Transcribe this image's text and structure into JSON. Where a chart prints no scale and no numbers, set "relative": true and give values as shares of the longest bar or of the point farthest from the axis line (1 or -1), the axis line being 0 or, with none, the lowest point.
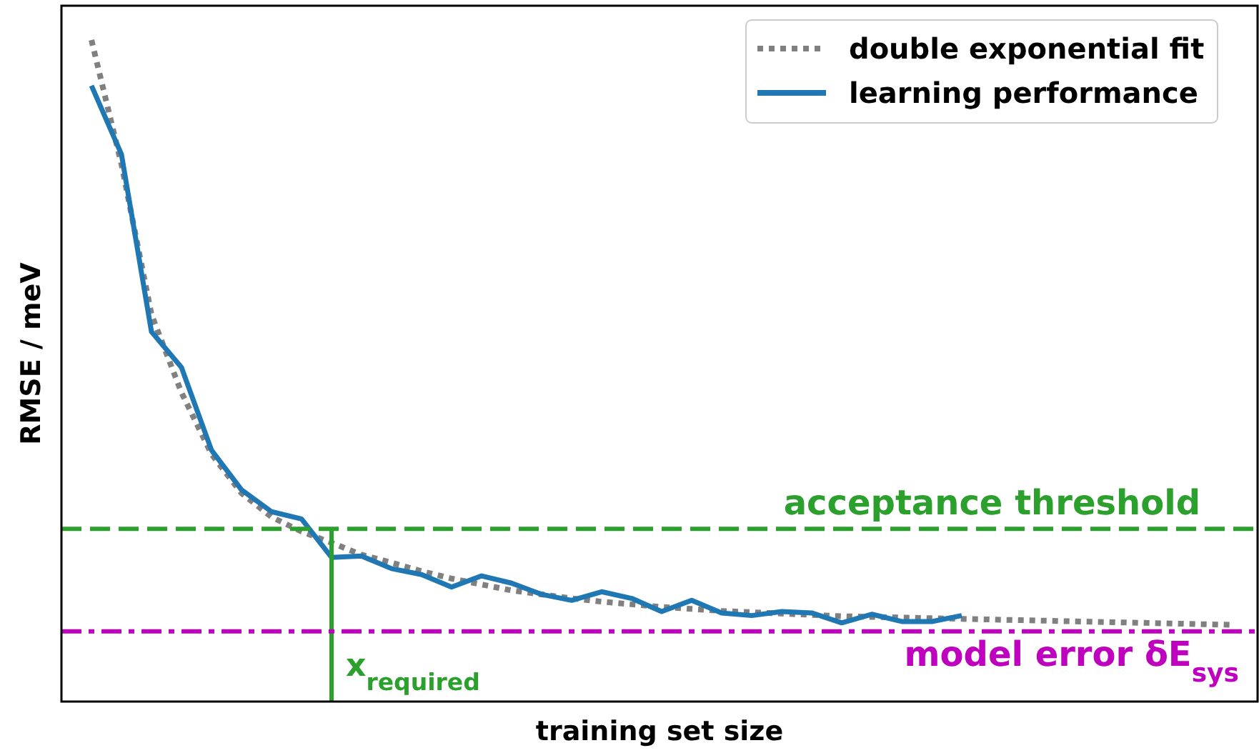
{
  "chart_data": {
    "type": "line",
    "relative": true,
    "xlabel": "training set size",
    "ylabel": "RMSE / meV",
    "categories": [
      null,
      null,
      null,
      null,
      null,
      null,
      null,
      null,
      null,
      null,
      null,
      null,
      null,
      null,
      null,
      null,
      null,
      null,
      null,
      null,
      null,
      null,
      null,
      null,
      null,
      null,
      null,
      null,
      null,
      null,
      null,
      null,
      null,
      null,
      null,
      null,
      null,
      null,
      null
    ],
    "series": [
      {
        "name": "double exponential fit",
        "color": "#808080",
        "line_style": "dotted",
        "values": [
          1.0,
          0.812,
          0.585,
          0.467,
          0.374,
          0.315,
          0.279,
          0.257,
          0.24,
          0.222,
          0.21,
          0.197,
          0.186,
          0.177,
          0.168,
          0.162,
          0.156,
          0.151,
          0.147,
          0.143,
          0.14,
          0.137,
          0.135,
          0.133,
          0.131,
          0.129,
          0.128,
          0.127,
          0.126,
          0.125,
          0.124,
          0.123,
          0.122,
          0.121,
          0.12,
          0.119,
          0.118,
          0.117,
          0.116
        ]
      },
      {
        "name": "learning performance",
        "color": "#1f77b4",
        "line_style": "solid",
        "values": [
          0.931,
          0.827,
          0.559,
          0.505,
          0.38,
          0.32,
          0.287,
          0.276,
          0.218,
          0.22,
          0.201,
          0.192,
          0.173,
          0.19,
          0.179,
          0.162,
          0.153,
          0.166,
          0.156,
          0.136,
          0.153,
          0.134,
          0.13,
          0.136,
          0.134,
          0.119,
          0.132,
          0.121,
          0.121,
          0.13,
          null,
          null,
          null,
          null,
          null,
          null,
          null,
          null,
          null
        ]
      }
    ],
    "ref_lines": [
      {
        "axis": "y",
        "value": 0.261,
        "label": "acceptance threshold",
        "color": "#2ca02c",
        "line_style": "dashed"
      },
      {
        "axis": "y",
        "value": 0.106,
        "label": "model error δE$_{sys}$",
        "color": "#bf00bf",
        "line_style": "dashdot"
      }
    ],
    "annotations": [
      "x$_{required}$"
    ],
    "legend": "top right"
  }
}
